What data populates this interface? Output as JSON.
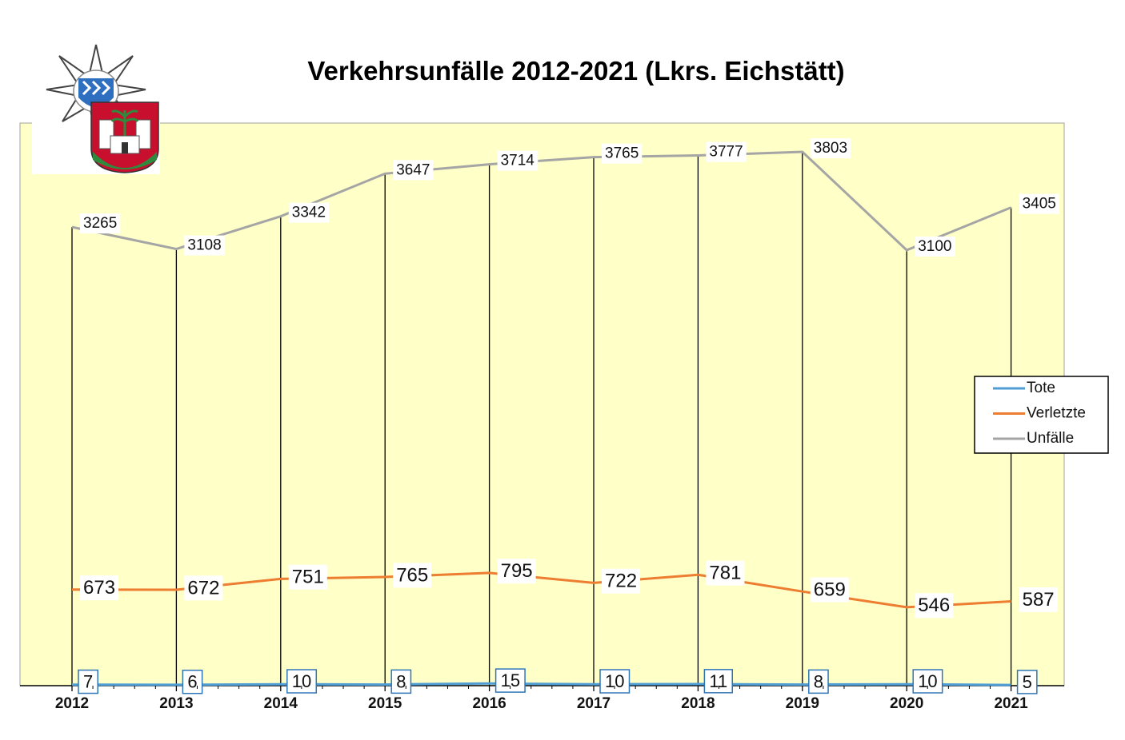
{
  "chart_data": {
    "type": "line",
    "title": "Verkehrsunfälle 2012-2021 (Lkrs. Eichstätt)",
    "categories": [
      "2012",
      "2013",
      "2014",
      "2015",
      "2016",
      "2017",
      "2018",
      "2019",
      "2020",
      "2021"
    ],
    "series": [
      {
        "name": "Tote",
        "color": "#4f9fd6",
        "values": [
          7,
          6,
          10,
          8,
          15,
          10,
          11,
          8,
          10,
          5
        ]
      },
      {
        "name": "Verletzte",
        "color": "#ed7d31",
        "values": [
          673,
          672,
          751,
          765,
          795,
          722,
          781,
          659,
          546,
          587
        ]
      },
      {
        "name": "Unfälle",
        "color": "#a5a5a5",
        "values": [
          3265,
          3108,
          3342,
          3647,
          3714,
          3765,
          3777,
          3803,
          3100,
          3405
        ]
      }
    ],
    "xlabel": "",
    "ylabel": "",
    "grid": false,
    "legend_position": "right",
    "plot_background": "#ffffc8"
  },
  "logo": {
    "icon": "police-star-with-coat-of-arms-logo"
  }
}
